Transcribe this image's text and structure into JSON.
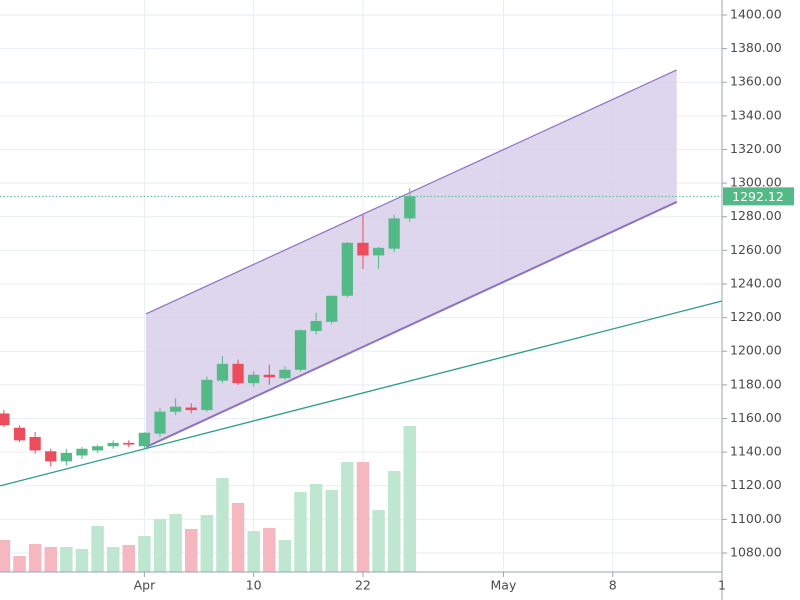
{
  "chart_data": {
    "type": "candlestick",
    "candles": {
      "open": [
        1163,
        1154.5,
        1149,
        1140.5,
        1134.5,
        1138,
        1141,
        1143.5,
        1145.5,
        1143.5,
        1151,
        1164,
        1166.5,
        1165,
        1182.5,
        1192.5,
        1181,
        1186,
        1184,
        1189,
        1212,
        1217.5,
        1233,
        1264.5,
        1257,
        1261,
        1279
      ],
      "high": [
        1165,
        1156,
        1152,
        1142,
        1142,
        1143,
        1144.5,
        1147,
        1147,
        1152,
        1166,
        1172,
        1169,
        1185,
        1197,
        1195,
        1188,
        1192,
        1191,
        1213,
        1223,
        1233,
        1265,
        1281,
        1262,
        1281,
        1297
      ],
      "low": [
        1155,
        1146,
        1139,
        1131.5,
        1132,
        1136,
        1139.5,
        1142,
        1143,
        1142,
        1149,
        1162,
        1163,
        1164,
        1181,
        1180,
        1179,
        1180,
        1183,
        1188,
        1210,
        1216,
        1232,
        1249,
        1249,
        1259,
        1277
      ],
      "close": [
        1156,
        1147,
        1141,
        1134.5,
        1139.5,
        1142,
        1143.5,
        1145.5,
        1144.5,
        1151.5,
        1164,
        1167,
        1165,
        1183,
        1192.5,
        1181,
        1186,
        1184.5,
        1189,
        1212.5,
        1218,
        1233,
        1264.5,
        1257,
        1261.5,
        1279,
        1292.12
      ]
    },
    "volume": [
      32,
      16,
      28,
      25,
      25,
      23,
      46,
      25,
      27,
      36,
      53,
      58,
      43,
      57,
      94,
      69,
      41,
      44,
      32,
      80,
      88,
      82,
      110,
      110,
      62,
      101,
      146
    ],
    "up_color": "#53b987",
    "down_color": "#eb4d5c",
    "volume_up_color": "#bfe6d1",
    "volume_down_color": "#f5b8c0",
    "channel": {
      "x": [
        9.1,
        43.1
      ],
      "upper": [
        1222.2,
        1367.3
      ],
      "lower": [
        1143.0,
        1288.8
      ],
      "color": "#8e72c4",
      "fill": "#d8cfea"
    },
    "trendline": {
      "x": [
        -0.25,
        46
      ],
      "y": [
        1119.9,
        1229.9
      ],
      "color": "#2b9c8c"
    },
    "last_price": 1292.12,
    "xlim": [
      -0.25,
      46
    ],
    "xticks": [
      {
        "value": 9,
        "label": "Apr"
      },
      {
        "value": 16,
        "label": "10"
      },
      {
        "value": 23,
        "label": "22"
      },
      {
        "value": 32,
        "label": "May"
      },
      {
        "value": 39,
        "label": "8"
      },
      {
        "value": 46,
        "label": "1"
      }
    ],
    "ylim": [
      1068.7,
      1408.9
    ],
    "yticks": [
      {
        "value": 1080,
        "label": "1080.00"
      },
      {
        "value": 1100,
        "label": "1100.00"
      },
      {
        "value": 1120,
        "label": "1120.00"
      },
      {
        "value": 1140,
        "label": "1140.00"
      },
      {
        "value": 1160,
        "label": "1160.00"
      },
      {
        "value": 1180,
        "label": "1180.00"
      },
      {
        "value": 1200,
        "label": "1200.00"
      },
      {
        "value": 1220,
        "label": "1220.00"
      },
      {
        "value": 1240,
        "label": "1240.00"
      },
      {
        "value": 1260,
        "label": "1260.00"
      },
      {
        "value": 1280,
        "label": "1280.00"
      },
      {
        "value": 1300,
        "label": "1300.00"
      },
      {
        "value": 1320,
        "label": "1320.00"
      },
      {
        "value": 1340,
        "label": "1340.00"
      },
      {
        "value": 1360,
        "label": "1360.00"
      },
      {
        "value": 1380,
        "label": "1380.00"
      },
      {
        "value": 1400,
        "label": "1400.00"
      }
    ],
    "grid": true
  }
}
